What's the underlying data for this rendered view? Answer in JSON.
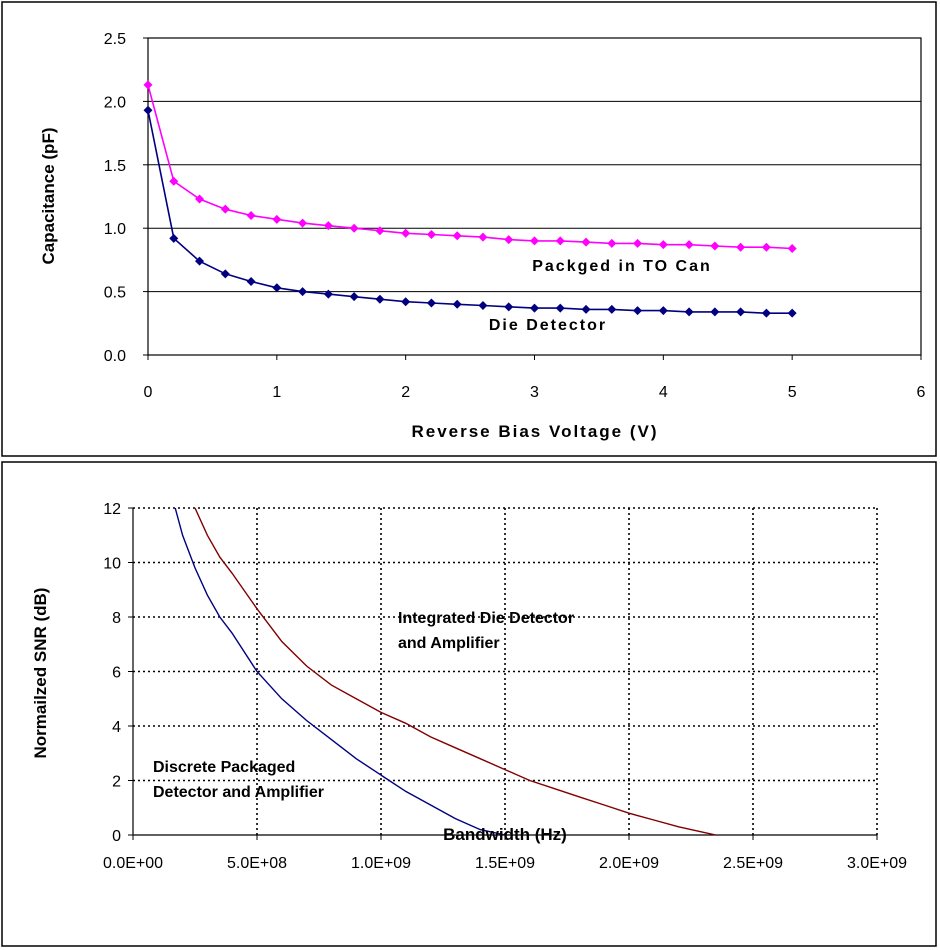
{
  "chart_data": [
    {
      "type": "line",
      "title": "",
      "xlabel": "Reverse Bias Voltage (V)",
      "ylabel": "Capacitance (pF)",
      "xlim": [
        0,
        6
      ],
      "ylim": [
        0,
        2.5
      ],
      "x_ticks": [
        "0",
        "1",
        "2",
        "3",
        "4",
        "5",
        "6"
      ],
      "y_ticks": [
        "0.0",
        "0.5",
        "1.0",
        "1.5",
        "2.0",
        "2.5"
      ],
      "grid": "horizontal",
      "legend": "none",
      "x": [
        0,
        0.2,
        0.4,
        0.6,
        0.8,
        1.0,
        1.2,
        1.4,
        1.6,
        1.8,
        2.0,
        2.2,
        2.4,
        2.6,
        2.8,
        3.0,
        3.2,
        3.4,
        3.6,
        3.8,
        4.0,
        4.2,
        4.4,
        4.6,
        4.8,
        5.0
      ],
      "series": [
        {
          "name": "Packged in TO Can",
          "color": "#ff00ff",
          "values": [
            2.13,
            1.37,
            1.23,
            1.15,
            1.1,
            1.07,
            1.04,
            1.02,
            1.0,
            0.98,
            0.96,
            0.95,
            0.94,
            0.93,
            0.91,
            0.9,
            0.9,
            0.89,
            0.88,
            0.88,
            0.87,
            0.87,
            0.86,
            0.85,
            0.85,
            0.84
          ]
        },
        {
          "name": "Die Detector",
          "color": "#000080",
          "values": [
            1.93,
            0.92,
            0.74,
            0.64,
            0.58,
            0.53,
            0.5,
            0.48,
            0.46,
            0.44,
            0.42,
            0.41,
            0.4,
            0.39,
            0.38,
            0.37,
            0.37,
            0.36,
            0.36,
            0.35,
            0.35,
            0.34,
            0.34,
            0.34,
            0.33,
            0.33
          ]
        }
      ],
      "annotations": [
        "Packged in TO Can",
        "Die Detector"
      ]
    },
    {
      "type": "line",
      "title": "",
      "xlabel": "Bandwidth (Hz)",
      "ylabel": "Normailzed SNR (dB)",
      "xlim": [
        0,
        3000000000
      ],
      "ylim": [
        0,
        12
      ],
      "x_ticks": [
        "0.0E+00",
        "5.0E+08",
        "1.0E+09",
        "1.5E+09",
        "2.0E+09",
        "2.5E+09",
        "3.0E+09"
      ],
      "y_ticks": [
        "0",
        "2",
        "4",
        "6",
        "8",
        "10",
        "12"
      ],
      "grid": "dotted both",
      "legend": "none",
      "series": [
        {
          "name": "Integrated Die Detector and Amplifier",
          "color": "#800000",
          "x": [
            250000000,
            300000000,
            350000000,
            400000000,
            500000000,
            600000000,
            700000000,
            800000000,
            900000000,
            1000000000,
            1100000000,
            1200000000,
            1300000000,
            1400000000,
            1500000000,
            1600000000,
            1700000000,
            1800000000,
            1900000000,
            2000000000,
            2100000000,
            2200000000,
            2300000000,
            2350000000
          ],
          "values": [
            12.0,
            11.0,
            10.2,
            9.6,
            8.3,
            7.1,
            6.2,
            5.5,
            5.0,
            4.5,
            4.1,
            3.6,
            3.2,
            2.8,
            2.4,
            2.0,
            1.7,
            1.4,
            1.1,
            0.8,
            0.55,
            0.3,
            0.1,
            0.0
          ]
        },
        {
          "name": "Discrete Packaged Detector and Amplifier",
          "color": "#000080",
          "x": [
            170000000,
            200000000,
            250000000,
            300000000,
            350000000,
            400000000,
            500000000,
            600000000,
            700000000,
            800000000,
            900000000,
            1000000000,
            1100000000,
            1200000000,
            1300000000,
            1400000000,
            1500000000
          ],
          "values": [
            12.0,
            11.0,
            9.8,
            8.8,
            8.0,
            7.4,
            6.0,
            5.0,
            4.2,
            3.5,
            2.8,
            2.2,
            1.6,
            1.1,
            0.6,
            0.2,
            0.0
          ]
        }
      ],
      "annotations": [
        [
          "Integrated Die Detector",
          "and Amplifier"
        ],
        [
          "Discrete Packaged",
          "Detector and Amplifier"
        ]
      ]
    }
  ]
}
